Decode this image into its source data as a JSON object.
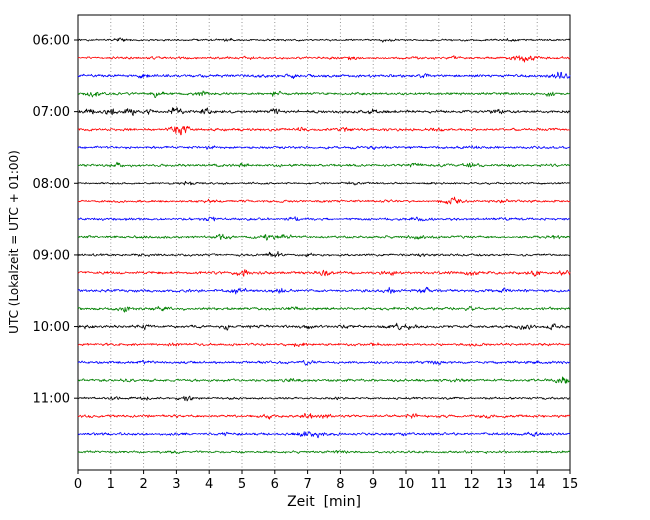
{
  "figure": {
    "background": "#ffffff"
  },
  "chart_data": {
    "type": "line",
    "subtype": "seismogram-helicorder",
    "title": "",
    "xlabel": "Zeit  [min]",
    "ylabel": "UTC (Lokalzeit = UTC + 01:00)",
    "xlim": [
      0,
      15
    ],
    "x_ticks": [
      0,
      1,
      2,
      3,
      4,
      5,
      6,
      7,
      8,
      9,
      10,
      11,
      12,
      13,
      14,
      15
    ],
    "grid": "vertical-dotted",
    "minutes_per_line": 15,
    "trace_colors_cycle": [
      "#000000",
      "#ff0000",
      "#0000ff",
      "#008000"
    ],
    "y_tick_labels": [
      "06:00",
      "07:00",
      "08:00",
      "09:00",
      "10:00",
      "11:00"
    ],
    "traces": [
      {
        "start": "06:00",
        "tick_label": "06:00",
        "color": "#000000",
        "base_amp": 1.0,
        "bursts": [
          {
            "x": 1.3,
            "a": 1.5
          },
          {
            "x": 4.6,
            "a": 1.2
          },
          {
            "x": 9.3,
            "a": 1.0
          },
          {
            "x": 13.2,
            "a": 0.8
          }
        ]
      },
      {
        "start": "06:15",
        "tick_label": "",
        "color": "#ff0000",
        "base_amp": 1.2,
        "bursts": [
          {
            "x": 5.2,
            "a": 1.2
          },
          {
            "x": 8.3,
            "a": 1.5
          },
          {
            "x": 11.5,
            "a": 1.0
          },
          {
            "x": 13.6,
            "a": 3.5,
            "w": 0.3
          }
        ]
      },
      {
        "start": "06:30",
        "tick_label": "",
        "color": "#0000ff",
        "base_amp": 1.5,
        "bursts": [
          {
            "x": 2.0,
            "a": 1.0
          },
          {
            "x": 6.5,
            "a": 1.2
          },
          {
            "x": 10.5,
            "a": 1.2
          },
          {
            "x": 14.7,
            "a": 3.0,
            "w": 0.25
          }
        ]
      },
      {
        "start": "06:45",
        "tick_label": "",
        "color": "#008000",
        "base_amp": 1.3,
        "bursts": [
          {
            "x": 0.5,
            "a": 2.0
          },
          {
            "x": 2.4,
            "a": 2.5
          },
          {
            "x": 3.8,
            "a": 1.5
          },
          {
            "x": 6.0,
            "a": 2.0
          },
          {
            "x": 14.4,
            "a": 2.0
          }
        ]
      },
      {
        "start": "07:00",
        "tick_label": "07:00",
        "color": "#000000",
        "base_amp": 1.5,
        "bursts": [
          {
            "x": 0.3,
            "a": 2.5
          },
          {
            "x": 1.0,
            "a": 2.5
          },
          {
            "x": 1.6,
            "a": 3.0
          },
          {
            "x": 2.2,
            "a": 2.5
          },
          {
            "x": 3.0,
            "a": 3.5
          },
          {
            "x": 3.9,
            "a": 2.5
          },
          {
            "x": 6.0,
            "a": 2.5
          },
          {
            "x": 9.0,
            "a": 1.5
          },
          {
            "x": 12.8,
            "a": 1.5
          }
        ]
      },
      {
        "start": "07:15",
        "tick_label": "",
        "color": "#ff0000",
        "base_amp": 1.3,
        "bursts": [
          {
            "x": 3.1,
            "a": 4.5,
            "w": 0.25
          },
          {
            "x": 6.9,
            "a": 2.0
          },
          {
            "x": 8.2,
            "a": 1.5
          },
          {
            "x": 11.0,
            "a": 1.0
          }
        ]
      },
      {
        "start": "07:30",
        "tick_label": "",
        "color": "#0000ff",
        "base_amp": 1.3,
        "bursts": [
          {
            "x": 4.0,
            "a": 1.0
          },
          {
            "x": 9.0,
            "a": 1.0
          },
          {
            "x": 12.0,
            "a": 0.8
          }
        ]
      },
      {
        "start": "07:45",
        "tick_label": "",
        "color": "#008000",
        "base_amp": 1.3,
        "bursts": [
          {
            "x": 1.2,
            "a": 1.5
          },
          {
            "x": 5.0,
            "a": 1.2
          },
          {
            "x": 10.3,
            "a": 1.5
          },
          {
            "x": 12.0,
            "a": 2.5,
            "w": 0.2
          }
        ]
      },
      {
        "start": "08:00",
        "tick_label": "08:00",
        "color": "#000000",
        "base_amp": 1.0,
        "bursts": [
          {
            "x": 3.4,
            "a": 1.5
          },
          {
            "x": 8.3,
            "a": 1.5
          },
          {
            "x": 11.0,
            "a": 0.8
          }
        ]
      },
      {
        "start": "08:15",
        "tick_label": "",
        "color": "#ff0000",
        "base_amp": 1.2,
        "bursts": [
          {
            "x": 4.0,
            "a": 1.0
          },
          {
            "x": 11.4,
            "a": 3.5,
            "w": 0.3
          },
          {
            "x": 13.0,
            "a": 1.2
          }
        ]
      },
      {
        "start": "08:30",
        "tick_label": "",
        "color": "#0000ff",
        "base_amp": 1.3,
        "bursts": [
          {
            "x": 4.0,
            "a": 1.5
          },
          {
            "x": 6.6,
            "a": 1.5
          },
          {
            "x": 10.3,
            "a": 1.2
          },
          {
            "x": 13.0,
            "a": 1.5
          }
        ]
      },
      {
        "start": "08:45",
        "tick_label": "",
        "color": "#008000",
        "base_amp": 1.3,
        "bursts": [
          {
            "x": 4.4,
            "a": 2.0
          },
          {
            "x": 5.8,
            "a": 2.5
          },
          {
            "x": 6.3,
            "a": 2.0
          },
          {
            "x": 10.4,
            "a": 1.5
          },
          {
            "x": 14.5,
            "a": 1.2
          }
        ]
      },
      {
        "start": "09:00",
        "tick_label": "09:00",
        "color": "#000000",
        "base_amp": 1.1,
        "bursts": [
          {
            "x": 2.0,
            "a": 1.0
          },
          {
            "x": 6.0,
            "a": 2.5,
            "w": 0.25
          },
          {
            "x": 7.0,
            "a": 1.2
          },
          {
            "x": 10.5,
            "a": 0.8
          }
        ]
      },
      {
        "start": "09:15",
        "tick_label": "",
        "color": "#ff0000",
        "base_amp": 1.4,
        "bursts": [
          {
            "x": 5.0,
            "a": 2.5
          },
          {
            "x": 7.5,
            "a": 2.0
          },
          {
            "x": 9.5,
            "a": 2.0
          },
          {
            "x": 12.0,
            "a": 2.0
          },
          {
            "x": 13.9,
            "a": 2.2
          },
          {
            "x": 14.9,
            "a": 2.5
          }
        ]
      },
      {
        "start": "09:30",
        "tick_label": "",
        "color": "#0000ff",
        "base_amp": 1.4,
        "bursts": [
          {
            "x": 4.9,
            "a": 2.5
          },
          {
            "x": 6.1,
            "a": 2.2
          },
          {
            "x": 9.5,
            "a": 2.2
          },
          {
            "x": 10.6,
            "a": 1.8
          },
          {
            "x": 13.0,
            "a": 1.8
          }
        ]
      },
      {
        "start": "09:45",
        "tick_label": "",
        "color": "#008000",
        "base_amp": 1.4,
        "bursts": [
          {
            "x": 1.4,
            "a": 1.8
          },
          {
            "x": 2.5,
            "a": 1.5
          },
          {
            "x": 6.5,
            "a": 1.2
          },
          {
            "x": 12.0,
            "a": 1.2
          }
        ]
      },
      {
        "start": "10:00",
        "tick_label": "10:00",
        "color": "#000000",
        "base_amp": 1.4,
        "bursts": [
          {
            "x": 0.3,
            "a": 1.5
          },
          {
            "x": 2.0,
            "a": 1.8
          },
          {
            "x": 4.5,
            "a": 1.8
          },
          {
            "x": 5.3,
            "a": 1.5
          },
          {
            "x": 7.0,
            "a": 1.5
          },
          {
            "x": 8.2,
            "a": 1.5
          },
          {
            "x": 9.9,
            "a": 3.0,
            "w": 0.3
          },
          {
            "x": 13.6,
            "a": 2.0
          },
          {
            "x": 14.5,
            "a": 1.5
          }
        ]
      },
      {
        "start": "10:15",
        "tick_label": "",
        "color": "#ff0000",
        "base_amp": 1.3,
        "bursts": [
          {
            "x": 3.0,
            "a": 1.2
          },
          {
            "x": 6.7,
            "a": 1.8
          },
          {
            "x": 9.0,
            "a": 1.5
          },
          {
            "x": 12.0,
            "a": 1.0
          }
        ]
      },
      {
        "start": "10:30",
        "tick_label": "",
        "color": "#0000ff",
        "base_amp": 1.3,
        "bursts": [
          {
            "x": 2.0,
            "a": 1.0
          },
          {
            "x": 7.0,
            "a": 1.5
          },
          {
            "x": 11.0,
            "a": 1.5
          },
          {
            "x": 14.0,
            "a": 1.0
          }
        ]
      },
      {
        "start": "10:45",
        "tick_label": "",
        "color": "#008000",
        "base_amp": 1.3,
        "bursts": [
          {
            "x": 1.5,
            "a": 1.2
          },
          {
            "x": 6.5,
            "a": 1.0
          },
          {
            "x": 11.5,
            "a": 1.0
          },
          {
            "x": 14.8,
            "a": 3.0,
            "w": 0.25
          }
        ]
      },
      {
        "start": "11:00",
        "tick_label": "11:00",
        "color": "#000000",
        "base_amp": 1.1,
        "bursts": [
          {
            "x": 1.2,
            "a": 2.0
          },
          {
            "x": 2.1,
            "a": 1.8
          },
          {
            "x": 3.3,
            "a": 2.2
          },
          {
            "x": 8.0,
            "a": 0.8
          },
          {
            "x": 12.5,
            "a": 0.8
          }
        ]
      },
      {
        "start": "11:15",
        "tick_label": "",
        "color": "#ff0000",
        "base_amp": 1.3,
        "bursts": [
          {
            "x": 5.8,
            "a": 2.0
          },
          {
            "x": 7.0,
            "a": 2.5
          },
          {
            "x": 7.6,
            "a": 2.0
          },
          {
            "x": 10.2,
            "a": 1.8
          },
          {
            "x": 12.5,
            "a": 1.2
          }
        ]
      },
      {
        "start": "11:30",
        "tick_label": "",
        "color": "#0000ff",
        "base_amp": 1.3,
        "bursts": [
          {
            "x": 4.5,
            "a": 1.2
          },
          {
            "x": 6.9,
            "a": 2.8,
            "w": 0.25
          },
          {
            "x": 7.3,
            "a": 2.0
          },
          {
            "x": 10.0,
            "a": 1.2
          },
          {
            "x": 13.9,
            "a": 1.8
          }
        ]
      },
      {
        "start": "11:45",
        "tick_label": "",
        "color": "#008000",
        "base_amp": 1.2,
        "bursts": [
          {
            "x": 3.0,
            "a": 1.0
          },
          {
            "x": 8.0,
            "a": 1.0
          },
          {
            "x": 12.5,
            "a": 0.8
          }
        ]
      }
    ]
  }
}
